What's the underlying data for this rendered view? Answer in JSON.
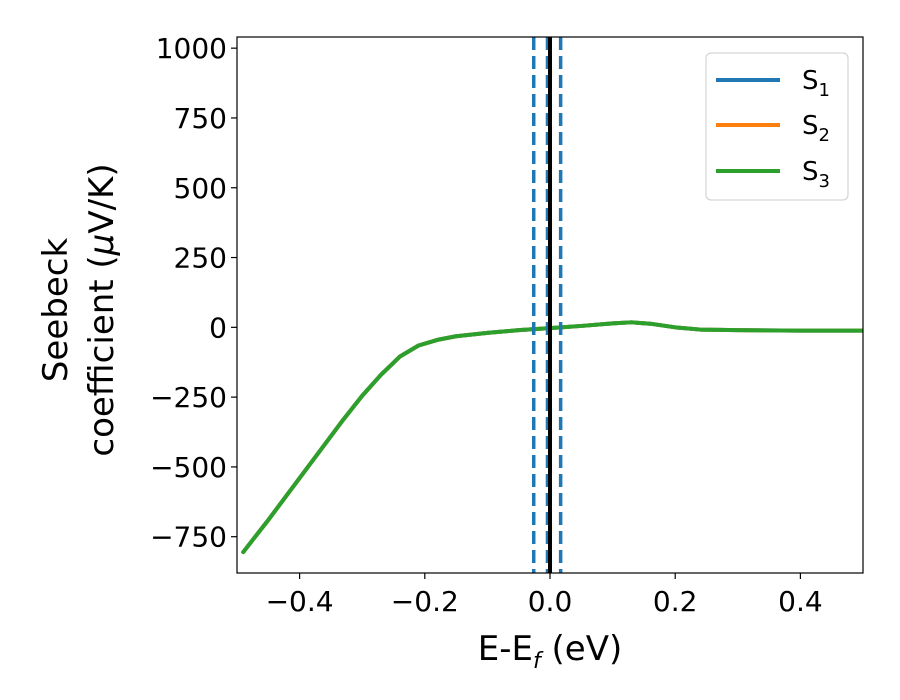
{
  "chart_data": {
    "type": "line",
    "title": "",
    "xlabel": {
      "main": "E-E",
      "sub": "f",
      "suffix": " (eV)"
    },
    "ylabel": {
      "line1": "Seebeck",
      "line2_prefix": "coefficient  (",
      "mu": "μ",
      "line2_suffix": "V/K)"
    },
    "xlim": [
      -0.5,
      0.5
    ],
    "ylim": [
      -880,
      1040
    ],
    "xticks": [
      -0.4,
      -0.2,
      0.0,
      0.2,
      0.4
    ],
    "xtick_labels": [
      "−0.4",
      "−0.2",
      "0.0",
      "0.2",
      "0.4"
    ],
    "yticks": [
      -750,
      -500,
      -250,
      0,
      250,
      500,
      750,
      1000
    ],
    "ytick_labels": [
      "−750",
      "−500",
      "−250",
      "0",
      "250",
      "500",
      "750",
      "1000"
    ],
    "legend_position": "top-right",
    "grid": false,
    "series": [
      {
        "name": {
          "base": "S",
          "sub": "1"
        },
        "color": "#1f77b4",
        "x": [
          -0.49,
          -0.45,
          -0.42,
          -0.39,
          -0.36,
          -0.33,
          -0.3,
          -0.27,
          -0.24,
          -0.21,
          -0.18,
          -0.15,
          -0.1,
          -0.05,
          0.0,
          0.05,
          0.1,
          0.13,
          0.16,
          0.2,
          0.24,
          0.3,
          0.4,
          0.5
        ],
        "y": [
          -805,
          -690,
          -600,
          -510,
          -420,
          -330,
          -245,
          -170,
          -105,
          -65,
          -45,
          -32,
          -20,
          -10,
          -3,
          5,
          14,
          18,
          13,
          0,
          -8,
          -10,
          -12,
          -12
        ]
      },
      {
        "name": {
          "base": "S",
          "sub": "2"
        },
        "color": "#ff7f0e",
        "x": [
          -0.49,
          -0.45,
          -0.42,
          -0.39,
          -0.36,
          -0.33,
          -0.3,
          -0.27,
          -0.24,
          -0.21,
          -0.18,
          -0.15,
          -0.1,
          -0.05,
          0.0,
          0.05,
          0.1,
          0.13,
          0.16,
          0.2,
          0.24,
          0.3,
          0.4,
          0.5
        ],
        "y": [
          -805,
          -690,
          -600,
          -510,
          -420,
          -330,
          -245,
          -170,
          -105,
          -65,
          -45,
          -32,
          -20,
          -10,
          -3,
          5,
          14,
          18,
          13,
          0,
          -8,
          -10,
          -12,
          -12
        ]
      },
      {
        "name": {
          "base": "S",
          "sub": "3"
        },
        "color": "#2ca02c",
        "x": [
          -0.49,
          -0.45,
          -0.42,
          -0.39,
          -0.36,
          -0.33,
          -0.3,
          -0.27,
          -0.24,
          -0.21,
          -0.18,
          -0.15,
          -0.1,
          -0.05,
          0.0,
          0.05,
          0.1,
          0.13,
          0.16,
          0.2,
          0.24,
          0.3,
          0.4,
          0.5
        ],
        "y": [
          -805,
          -690,
          -600,
          -510,
          -420,
          -330,
          -245,
          -170,
          -105,
          -65,
          -45,
          -32,
          -20,
          -10,
          -3,
          5,
          14,
          18,
          13,
          0,
          -8,
          -10,
          -12,
          -12
        ]
      }
    ],
    "vertical_lines": [
      {
        "x": -0.026,
        "style": "dashed",
        "color": "#1f77b4"
      },
      {
        "x": 0.017,
        "style": "dashed",
        "color": "#1f77b4"
      },
      {
        "x": -0.004,
        "style": "dashed",
        "color": "#1f77b4"
      },
      {
        "x": 0.0,
        "style": "solid",
        "color": "#000000"
      }
    ]
  }
}
